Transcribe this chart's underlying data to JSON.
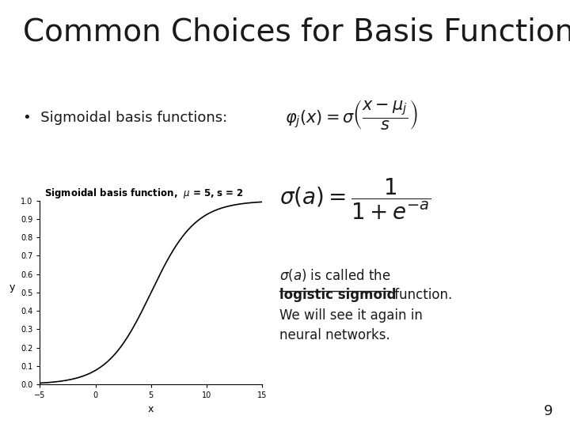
{
  "title": "Common Choices for Basis Functions",
  "title_fontsize": 28,
  "title_color": "#1a1a1a",
  "background_color": "#ffffff",
  "page_number": "9",
  "bullet_text": "•  Sigmoidal basis functions:",
  "formula1": "$\\varphi_j(x) = \\sigma\\left(\\dfrac{x-\\mu_j}{s}\\right)$",
  "formula2": "$\\sigma(a) = \\dfrac{1}{1+e^{-a}}$",
  "desc_line1": "$\\sigma(a)$ is called the",
  "desc_bold": "logistic sigmoid",
  "desc_line2": " function.",
  "desc_line3": "We will see it again in",
  "desc_line4": "neural networks.",
  "plot_title": "Sigmoidal basis function,  $\\mu$ = 5, s = 2",
  "mu": 5,
  "s": 2,
  "x_min": -5,
  "x_max": 15,
  "xlabel": "x",
  "ylabel": "y",
  "plot_color": "#000000",
  "plot_linewidth": 1.2,
  "yticks": [
    0,
    0.1,
    0.2,
    0.3,
    0.4,
    0.5,
    0.6,
    0.7,
    0.8,
    0.9,
    1
  ],
  "xticks": [
    -5,
    0,
    5,
    10,
    15
  ]
}
